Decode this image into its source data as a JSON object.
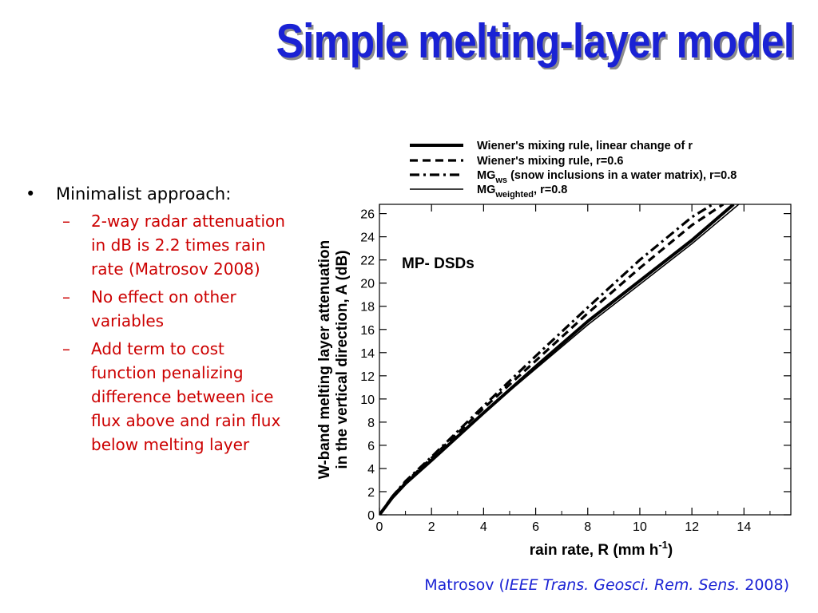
{
  "slide": {
    "title": "Simple melting-layer model",
    "bullets": [
      {
        "text": "Minimalist approach:",
        "subitems": [
          "2-way radar attenuation in dB is 2.2 times rain rate (Matrosov 2008)",
          "No effect on other variables",
          "Add term to cost function penalizing difference between ice flux above and rain flux below melting layer"
        ]
      }
    ],
    "caption": {
      "prefix": "Matrosov (",
      "journal": "IEEE Trans. Geosci. Rem. Sens.",
      "suffix": " 2008)"
    },
    "colors": {
      "title": "#1a22d4",
      "subitems": "#cc0000",
      "caption": "#1a22d4"
    }
  },
  "chart_data": {
    "type": "line",
    "annotation": "MP- DSDs",
    "xlabel": "rain rate, R (mm h",
    "xlabel_superscript": "-1",
    "xlabel_suffix": ")",
    "ylabel_line1": "W-band melting layer attenuation",
    "ylabel_line2": "in the vertical direction, A (dB)",
    "xlim": [
      0,
      15.8
    ],
    "ylim": [
      0,
      26.8
    ],
    "xticks": [
      0,
      2,
      4,
      6,
      8,
      10,
      12,
      14
    ],
    "yticks": [
      0,
      2,
      4,
      6,
      8,
      10,
      12,
      14,
      16,
      18,
      20,
      22,
      24,
      26
    ],
    "grid": false,
    "legend_position": "top, above plot",
    "series": [
      {
        "name": "Wiener's mixing rule, linear change of r",
        "style": "thick-solid",
        "x": [
          0,
          0.5,
          1,
          2,
          4,
          6,
          8,
          10,
          12,
          13.6
        ],
        "y": [
          0,
          1.5,
          2.7,
          4.7,
          8.8,
          12.8,
          16.7,
          20.2,
          23.7,
          26.8
        ]
      },
      {
        "name": "Wiener's mixing rule, r=0.6",
        "style": "dashed",
        "x": [
          0,
          0.5,
          1,
          2,
          4,
          6,
          8,
          10,
          12,
          13.2
        ],
        "y": [
          0,
          1.6,
          2.8,
          4.9,
          9.2,
          13.3,
          17.4,
          21.3,
          25.0,
          26.8
        ]
      },
      {
        "name_main": "MG",
        "name_sub": "ws",
        "name_rest": " (snow inclusions in a water matrix), r=0.8",
        "style": "dash-dot",
        "x": [
          0,
          0.5,
          1,
          2,
          4,
          6,
          8,
          10,
          12,
          12.8
        ],
        "y": [
          0,
          1.6,
          2.9,
          5.0,
          9.4,
          13.7,
          17.9,
          22.0,
          25.7,
          26.8
        ]
      },
      {
        "name_main": "MG",
        "name_sub": "weighted",
        "name_rest": ", r=0.8",
        "style": "thin-solid",
        "x": [
          0,
          0.5,
          1,
          2,
          4,
          6,
          8,
          10,
          12,
          13.8
        ],
        "y": [
          0,
          1.6,
          2.8,
          4.8,
          8.8,
          12.6,
          16.4,
          19.9,
          23.4,
          26.8
        ]
      }
    ]
  }
}
